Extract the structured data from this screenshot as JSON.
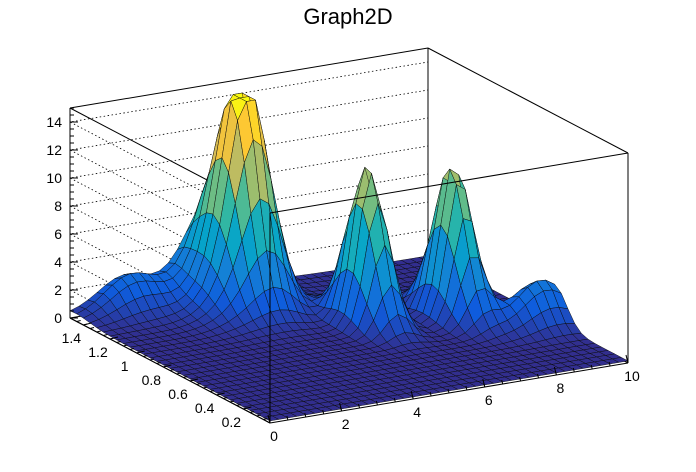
{
  "chart_data": {
    "type": "surface3d",
    "title": "Graph2D",
    "xlabel": "",
    "ylabel": "",
    "zlabel": "",
    "xlim": [
      0,
      10
    ],
    "ylim": [
      0,
      1.5
    ],
    "zlim": [
      0,
      15
    ],
    "x_ticks": [
      0,
      2,
      4,
      6,
      8,
      10
    ],
    "y_ticks": [
      0.2,
      0.4,
      0.6,
      0.8,
      1,
      1.2,
      1.4
    ],
    "z_ticks": [
      0,
      2,
      4,
      6,
      8,
      10,
      12,
      14
    ],
    "x_tick_labels": [
      "0",
      "2",
      "4",
      "6",
      "8",
      "10"
    ],
    "y_tick_labels": [
      "0.2",
      "0.4",
      "0.6",
      "0.8",
      "1",
      "1.2",
      "1.4"
    ],
    "z_tick_labels": [
      "0",
      "2",
      "4",
      "6",
      "8",
      "10",
      "12",
      "14"
    ],
    "grid": true,
    "palette": "kBird",
    "peaks": [
      {
        "x": 4.1,
        "y": 1.3,
        "z": 15.0
      },
      {
        "x": 6.0,
        "y": 0.88,
        "z": 11.2
      },
      {
        "x": 8.1,
        "y": 0.8,
        "z": 11.0
      },
      {
        "x": 1.5,
        "y": 1.45,
        "z": 2.3
      },
      {
        "x": 3.6,
        "y": 1.5,
        "z": 2.8
      },
      {
        "x": 9.6,
        "y": 0.55,
        "z": 3.2
      }
    ],
    "colors": [
      "#352a87",
      "#0f5cdd",
      "#1481d6",
      "#06a4ca",
      "#2eb7a4",
      "#87bf77",
      "#d1bb59",
      "#fec832",
      "#f9fb0e"
    ]
  }
}
